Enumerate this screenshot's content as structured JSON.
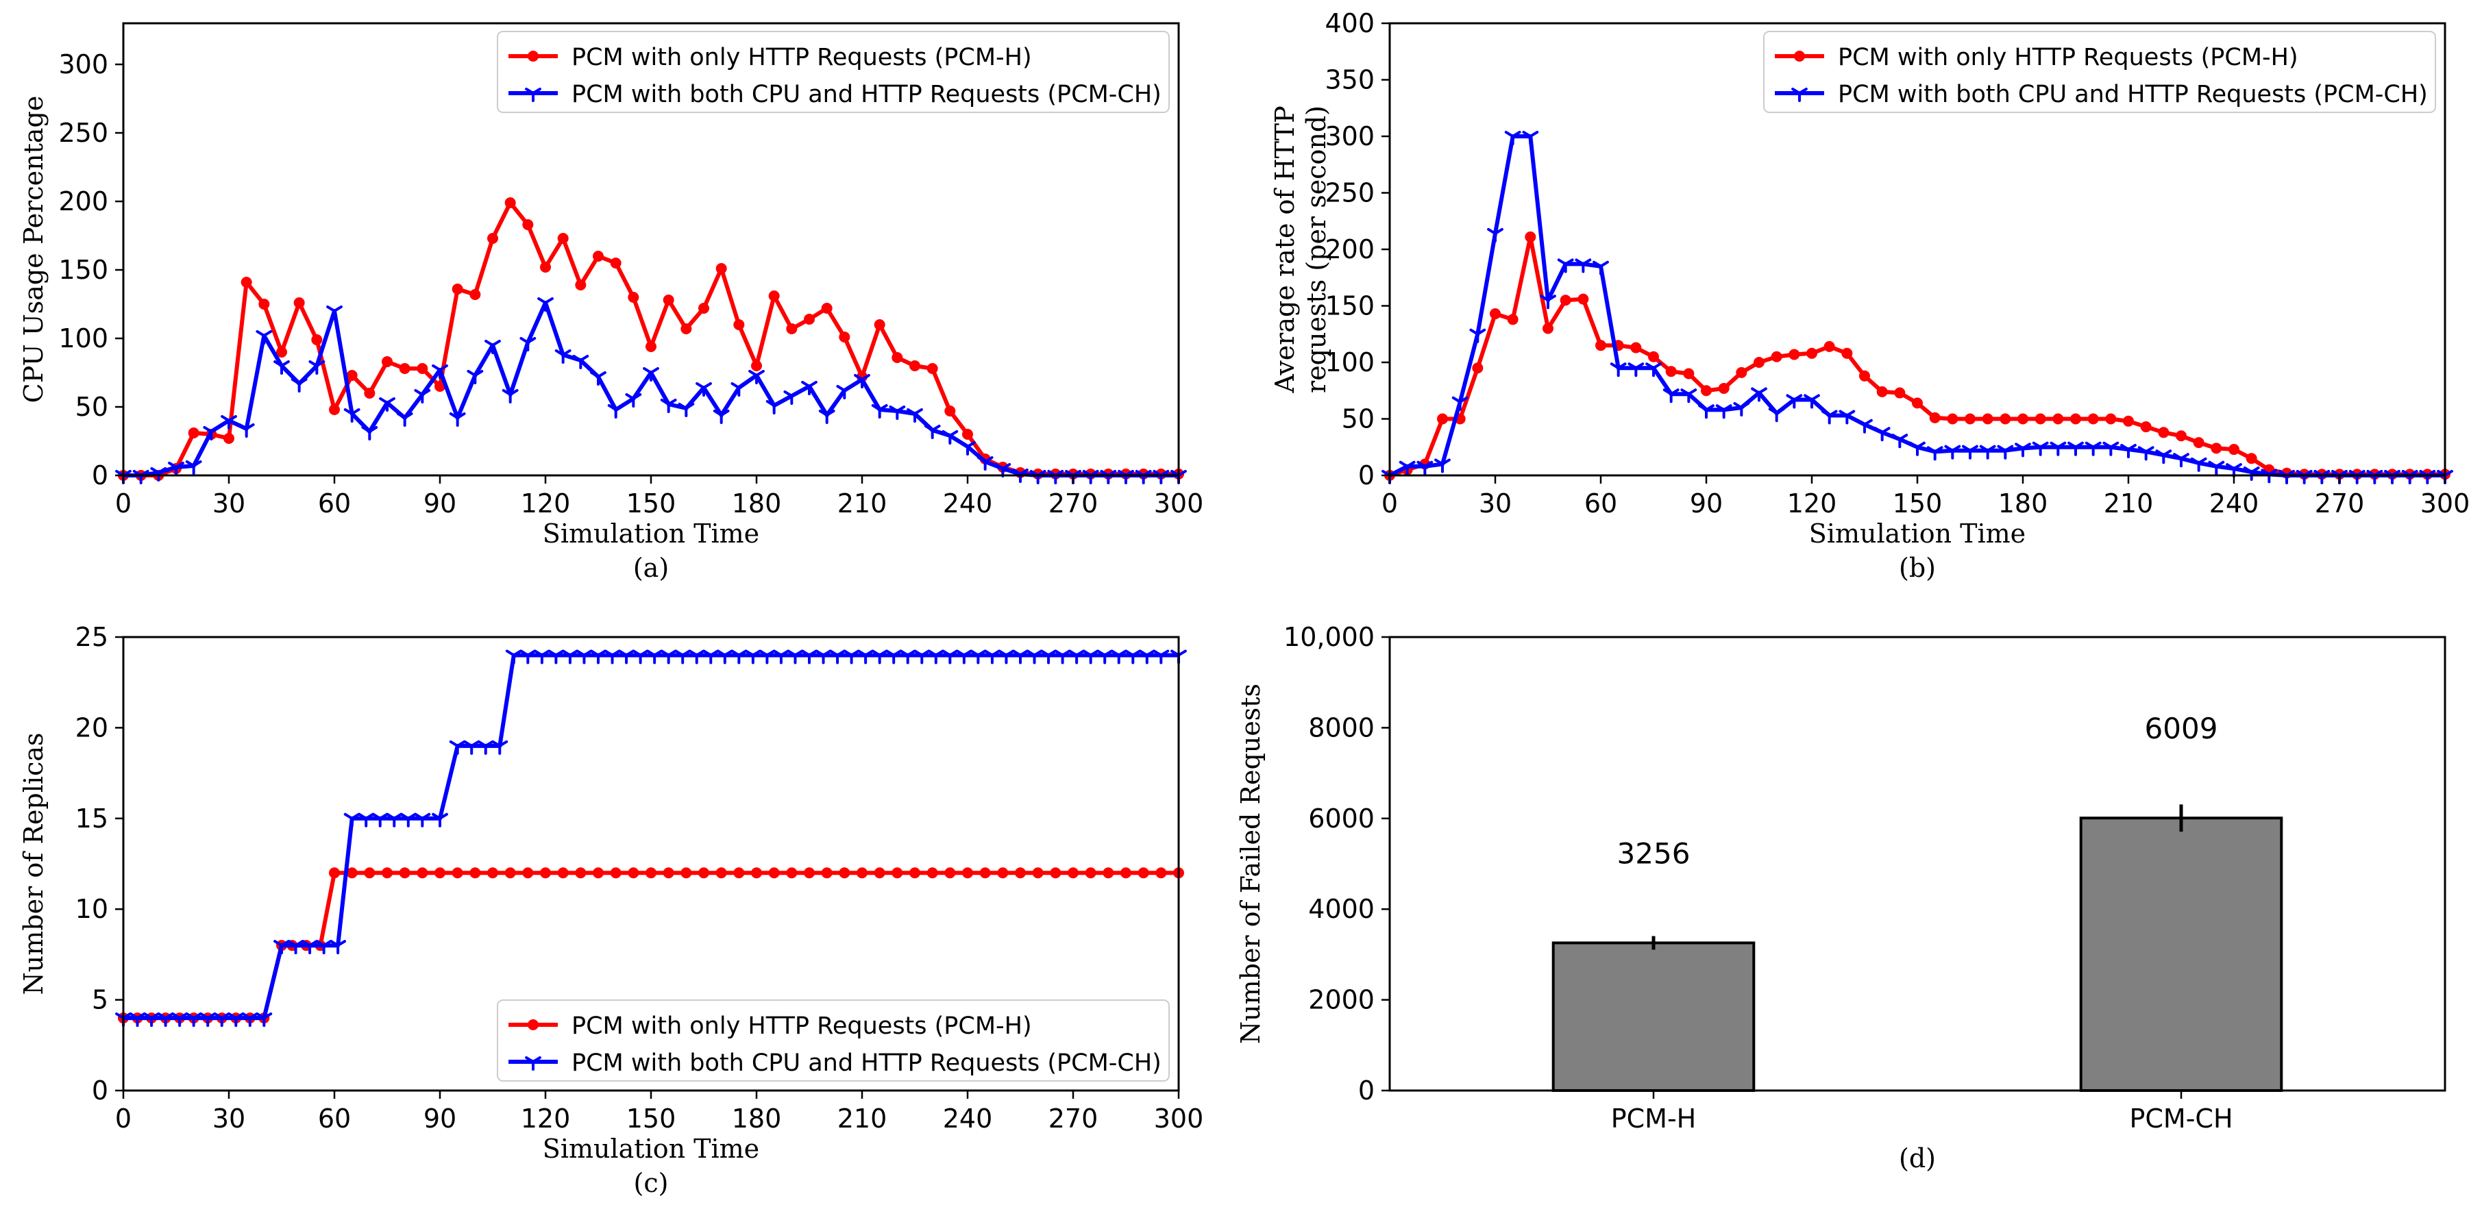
{
  "chart_data": [
    {
      "type": "line",
      "caption": "(a)",
      "title": "",
      "xlabel": "Simulation Time",
      "ylabel": "CPU Usage Percentage",
      "xlim": [
        0,
        300
      ],
      "ylim": [
        0,
        330
      ],
      "xticks": [
        0,
        30,
        60,
        90,
        120,
        150,
        180,
        210,
        240,
        270,
        300
      ],
      "yticks": [
        0,
        50,
        100,
        150,
        200,
        250,
        300
      ],
      "legend_position": "top-right",
      "x": [
        0,
        5,
        10,
        15,
        20,
        25,
        30,
        35,
        40,
        45,
        50,
        55,
        60,
        65,
        70,
        75,
        80,
        85,
        90,
        95,
        100,
        105,
        110,
        115,
        120,
        125,
        130,
        135,
        140,
        145,
        150,
        155,
        160,
        165,
        170,
        175,
        180,
        185,
        190,
        195,
        200,
        205,
        210,
        215,
        220,
        225,
        230,
        235,
        240,
        245,
        250,
        255,
        260,
        265,
        270,
        275,
        280,
        285,
        290,
        295,
        300
      ],
      "series": [
        {
          "name": "PCM with only HTTP Requests (PCM-H)",
          "color": "#ff0000",
          "marker": "circle",
          "values": [
            0,
            0,
            0,
            5,
            31,
            30,
            27,
            141,
            125,
            90,
            126,
            99,
            48,
            73,
            60,
            83,
            78,
            78,
            65,
            136,
            132,
            173,
            199,
            183,
            152,
            173,
            139,
            160,
            155,
            130,
            94,
            128,
            107,
            122,
            151,
            110,
            80,
            131,
            107,
            114,
            122,
            101,
            72,
            110,
            86,
            80,
            78,
            47,
            30,
            12,
            6,
            2,
            1,
            1,
            1,
            1,
            1,
            1,
            1,
            1,
            1
          ]
        },
        {
          "name": "PCM with both CPU and HTTP Requests (PCM-CH)",
          "color": "#0000ff",
          "marker": "tri",
          "values": [
            0,
            0,
            2,
            6,
            7,
            32,
            40,
            34,
            102,
            80,
            67,
            80,
            120,
            45,
            32,
            53,
            42,
            59,
            77,
            42,
            73,
            95,
            59,
            97,
            126,
            88,
            84,
            72,
            48,
            56,
            75,
            52,
            49,
            64,
            44,
            64,
            73,
            51,
            58,
            65,
            44,
            62,
            70,
            48,
            47,
            45,
            33,
            29,
            21,
            10,
            5,
            1,
            0,
            0,
            0,
            0,
            0,
            0,
            0,
            0,
            0
          ]
        }
      ]
    },
    {
      "type": "line",
      "caption": "(b)",
      "title": "",
      "xlabel": "Simulation Time",
      "ylabel": "Average rate of HTTP requests (per second)",
      "ylabel_lines": [
        "Average rate of HTTP",
        "requests (per second)"
      ],
      "xlim": [
        0,
        300
      ],
      "ylim": [
        0,
        400
      ],
      "xticks": [
        0,
        30,
        60,
        90,
        120,
        150,
        180,
        210,
        240,
        270,
        300
      ],
      "yticks": [
        0,
        50,
        100,
        150,
        200,
        250,
        300,
        350,
        400
      ],
      "legend_position": "top-right",
      "x": [
        0,
        5,
        10,
        15,
        20,
        25,
        30,
        35,
        40,
        45,
        50,
        55,
        60,
        65,
        70,
        75,
        80,
        85,
        90,
        95,
        100,
        105,
        110,
        115,
        120,
        125,
        130,
        135,
        140,
        145,
        150,
        155,
        160,
        165,
        170,
        175,
        180,
        185,
        190,
        195,
        200,
        205,
        210,
        215,
        220,
        225,
        230,
        235,
        240,
        245,
        250,
        255,
        260,
        265,
        270,
        275,
        280,
        285,
        290,
        295,
        300
      ],
      "series": [
        {
          "name": "PCM with only HTTP Requests (PCM-H)",
          "color": "#ff0000",
          "marker": "circle",
          "values": [
            0,
            5,
            10,
            50,
            50,
            95,
            143,
            138,
            211,
            130,
            155,
            156,
            115,
            115,
            113,
            105,
            92,
            90,
            75,
            77,
            91,
            100,
            105,
            107,
            108,
            114,
            108,
            88,
            74,
            73,
            64,
            51,
            50,
            50,
            50,
            50,
            50,
            50,
            50,
            50,
            50,
            50,
            48,
            43,
            38,
            35,
            29,
            24,
            23,
            15,
            5,
            2,
            1,
            1,
            1,
            1,
            1,
            1,
            1,
            1,
            1
          ]
        },
        {
          "name": "PCM with both CPU and HTTP Requests (PCM-CH)",
          "color": "#0000ff",
          "marker": "tri",
          "values": [
            0,
            8,
            8,
            10,
            65,
            125,
            214,
            300,
            300,
            155,
            187,
            187,
            185,
            95,
            95,
            95,
            72,
            72,
            58,
            58,
            60,
            73,
            55,
            67,
            67,
            53,
            53,
            45,
            38,
            32,
            25,
            21,
            22,
            22,
            22,
            22,
            24,
            25,
            25,
            25,
            25,
            25,
            23,
            21,
            18,
            15,
            11,
            8,
            6,
            3,
            1,
            0,
            0,
            0,
            0,
            0,
            0,
            0,
            0,
            0,
            0
          ]
        }
      ]
    },
    {
      "type": "line",
      "caption": "(c)",
      "title": "",
      "xlabel": "Simulation Time",
      "ylabel": "Number of Replicas",
      "xlim": [
        0,
        300
      ],
      "ylim": [
        0,
        25
      ],
      "xticks": [
        0,
        30,
        60,
        90,
        120,
        150,
        180,
        210,
        240,
        270,
        300
      ],
      "yticks": [
        0,
        5,
        10,
        15,
        20,
        25
      ],
      "legend_position": "bottom-right",
      "series": [
        {
          "name": "PCM with only HTTP Requests (PCM-H)",
          "color": "#ff0000",
          "marker": "circle",
          "x": [
            0,
            4,
            8,
            12,
            16,
            20,
            24,
            28,
            32,
            36,
            40,
            45,
            48,
            52,
            56,
            60,
            65,
            70,
            75,
            80,
            85,
            90,
            95,
            100,
            105,
            110,
            115,
            120,
            125,
            130,
            135,
            140,
            145,
            150,
            155,
            160,
            165,
            170,
            175,
            180,
            185,
            190,
            195,
            200,
            205,
            210,
            215,
            220,
            225,
            230,
            235,
            240,
            245,
            250,
            255,
            260,
            265,
            270,
            275,
            280,
            285,
            290,
            295,
            300
          ],
          "values": [
            4,
            4,
            4,
            4,
            4,
            4,
            4,
            4,
            4,
            4,
            4,
            8,
            8,
            8,
            8,
            12,
            12,
            12,
            12,
            12,
            12,
            12,
            12,
            12,
            12,
            12,
            12,
            12,
            12,
            12,
            12,
            12,
            12,
            12,
            12,
            12,
            12,
            12,
            12,
            12,
            12,
            12,
            12,
            12,
            12,
            12,
            12,
            12,
            12,
            12,
            12,
            12,
            12,
            12,
            12,
            12,
            12,
            12,
            12,
            12,
            12,
            12,
            12,
            12
          ]
        },
        {
          "name": "PCM with both CPU and HTTP Requests (PCM-CH)",
          "color": "#0000ff",
          "marker": "tri",
          "x": [
            0,
            4,
            8,
            12,
            16,
            20,
            24,
            28,
            32,
            36,
            40,
            45,
            49,
            53,
            57,
            61,
            65,
            69,
            73,
            77,
            81,
            85,
            90,
            95,
            99,
            103,
            107,
            111,
            115,
            119,
            123,
            127,
            131,
            135,
            139,
            143,
            147,
            151,
            155,
            159,
            163,
            167,
            171,
            175,
            179,
            183,
            187,
            191,
            195,
            199,
            203,
            207,
            211,
            215,
            219,
            223,
            227,
            231,
            235,
            239,
            243,
            247,
            251,
            255,
            259,
            263,
            267,
            271,
            275,
            279,
            283,
            287,
            291,
            295,
            300
          ],
          "values": [
            4,
            4,
            4,
            4,
            4,
            4,
            4,
            4,
            4,
            4,
            4,
            8,
            8,
            8,
            8,
            8,
            15,
            15,
            15,
            15,
            15,
            15,
            15,
            19,
            19,
            19,
            19,
            24,
            24,
            24,
            24,
            24,
            24,
            24,
            24,
            24,
            24,
            24,
            24,
            24,
            24,
            24,
            24,
            24,
            24,
            24,
            24,
            24,
            24,
            24,
            24,
            24,
            24,
            24,
            24,
            24,
            24,
            24,
            24,
            24,
            24,
            24,
            24,
            24,
            24,
            24,
            24,
            24,
            24,
            24,
            24,
            24,
            24,
            24,
            24
          ]
        }
      ]
    },
    {
      "type": "bar",
      "caption": "(d)",
      "title": "",
      "xlabel": "",
      "ylabel": "Number of Failed Requests",
      "ylim": [
        0,
        10000
      ],
      "yticks": [
        0,
        2000,
        4000,
        6000,
        8000,
        10000
      ],
      "ytick_labels": [
        "0",
        "2000",
        "4000",
        "6000",
        "8000",
        "10,000"
      ],
      "categories": [
        "PCM-H",
        "PCM-CH"
      ],
      "values": [
        3256,
        6009
      ],
      "value_labels": [
        "3256",
        "6009"
      ],
      "errors": [
        150,
        300
      ],
      "bar_color": "#808080"
    }
  ]
}
